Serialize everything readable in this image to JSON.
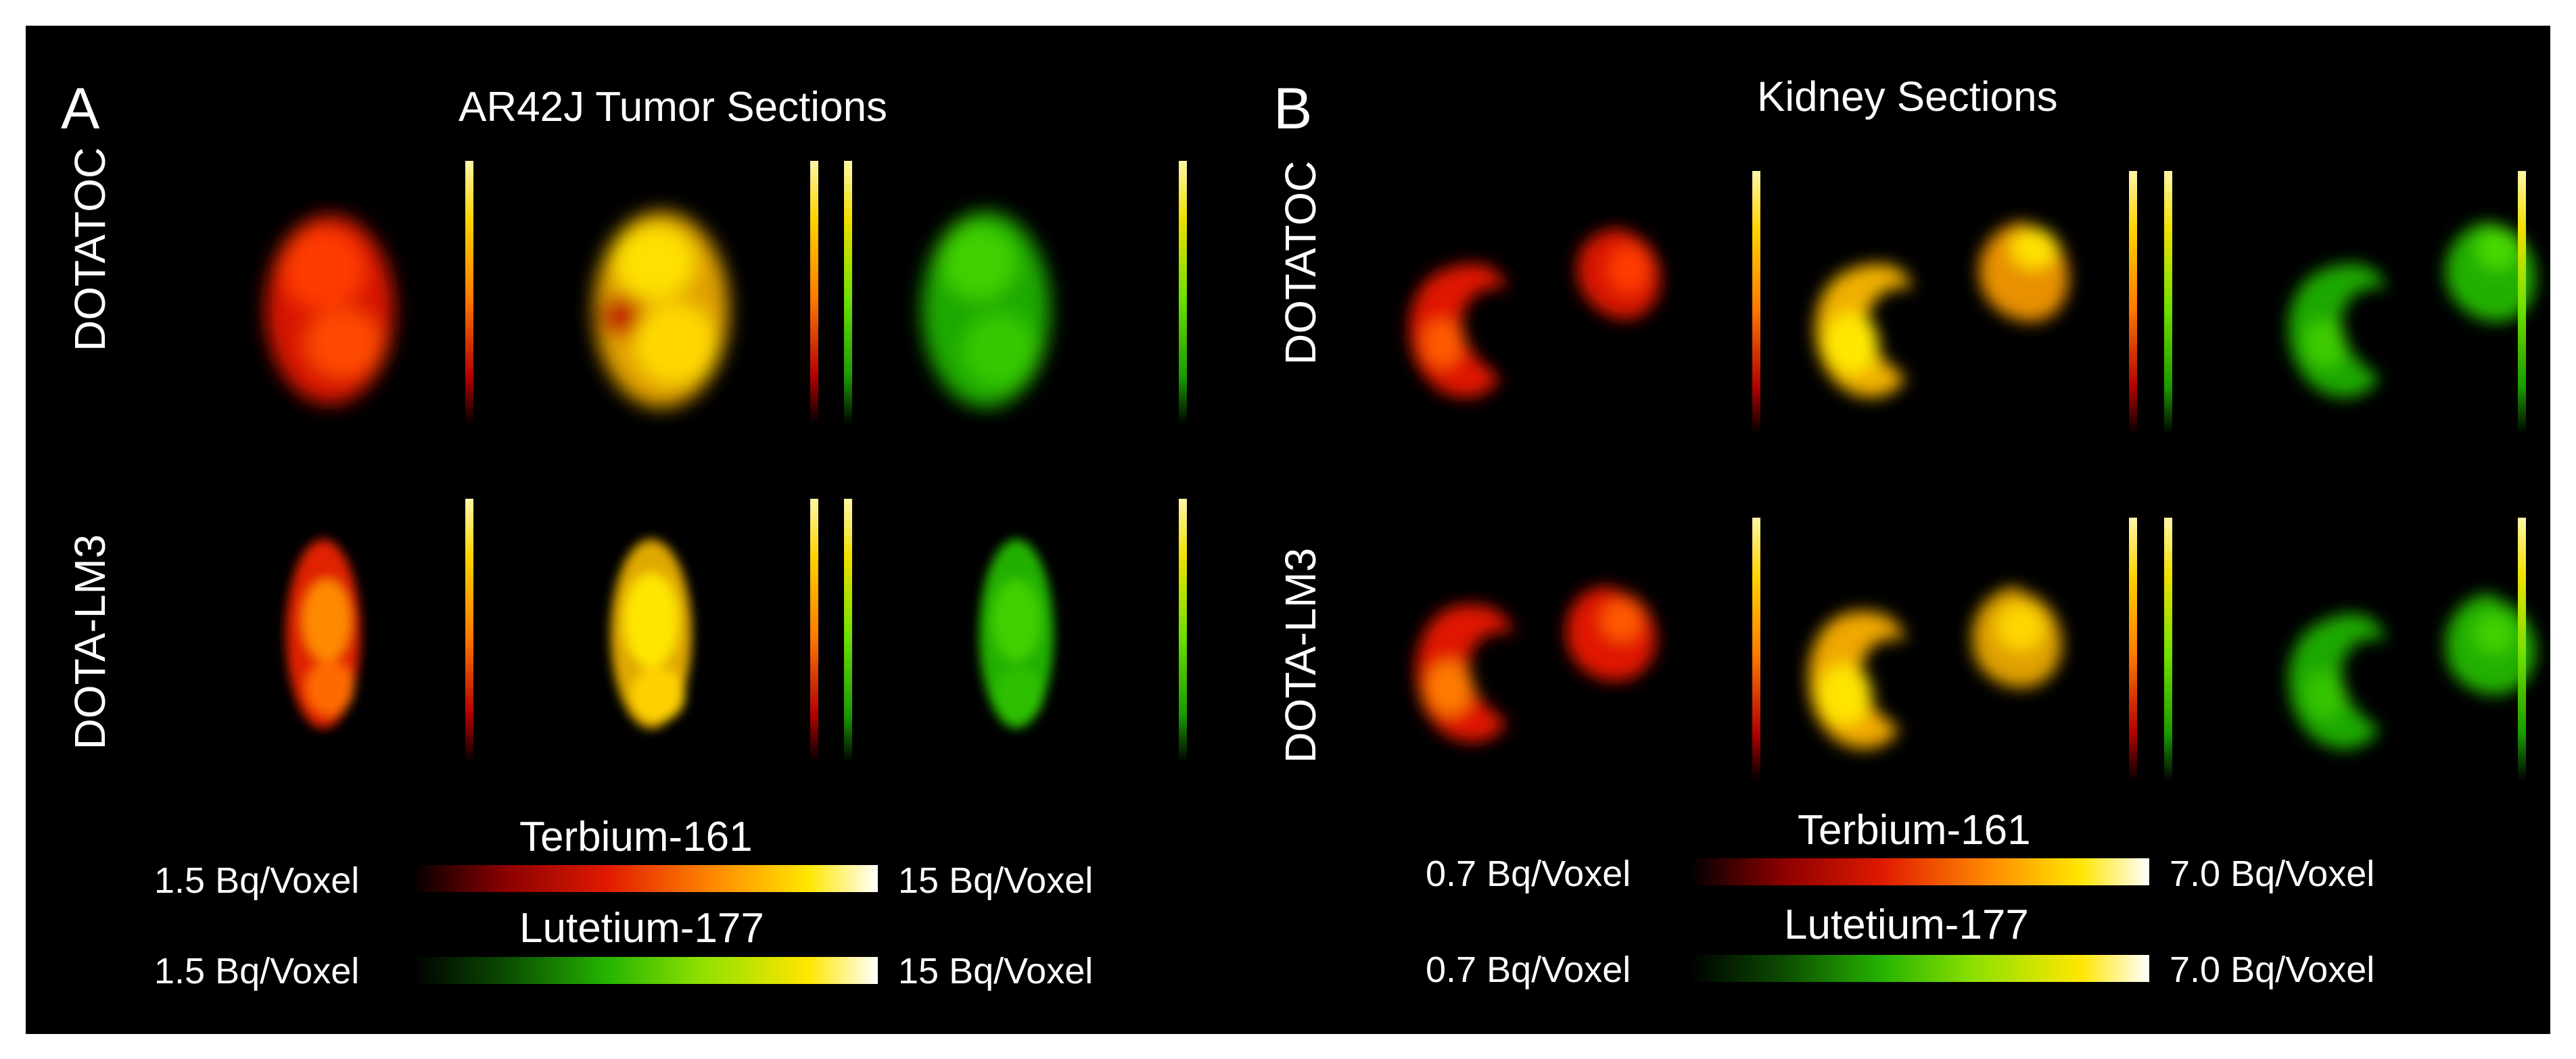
{
  "panels": [
    {
      "letter": "A",
      "title": "AR42J Tumor Sections",
      "rows": [
        "DOTATOC",
        "DOTA-LM3"
      ],
      "scales": [
        {
          "name": "Terbium-161",
          "min": "1.5 Bq/Voxel",
          "max": "15 Bq/Voxel"
        },
        {
          "name": "Lutetium-177",
          "min": "1.5 Bq/Voxel",
          "max": "15 Bq/Voxel"
        }
      ]
    },
    {
      "letter": "B",
      "title": "Kidney Sections",
      "rows": [
        "DOTATOC",
        "DOTA-LM3"
      ],
      "scales": [
        {
          "name": "Terbium-161",
          "min": "0.7 Bq/Voxel",
          "max": "7.0 Bq/Voxel"
        },
        {
          "name": "Lutetium-177",
          "min": "0.7 Bq/Voxel",
          "max": "7.0 Bq/Voxel"
        }
      ]
    }
  ],
  "colors": {
    "background": "#000000",
    "terbium": "#e01a00",
    "lutetium": "#25b400",
    "overlay": "#ffd400"
  }
}
